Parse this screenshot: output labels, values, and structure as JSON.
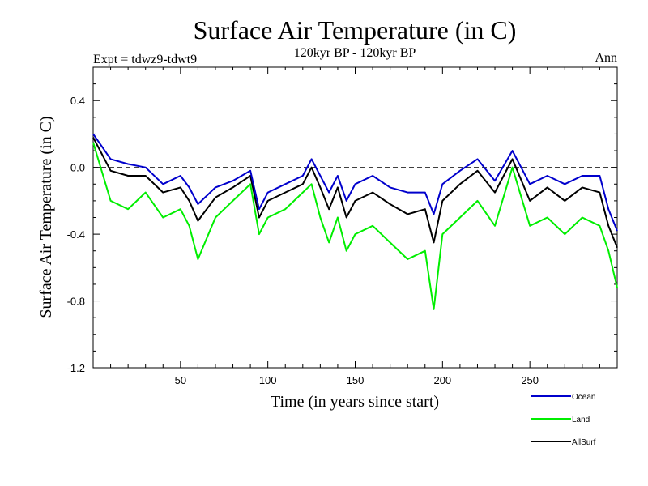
{
  "chart_data": {
    "type": "line",
    "title": "Surface Air Temperature (in C)",
    "subtitle": "120kyr BP - 120kyr BP",
    "left_annotation": "Expt = tdwz9-tdwt9",
    "right_annotation": "Ann",
    "xlabel": "Time (in years since start)",
    "ylabel": "Surface Air Temperature (in C)",
    "xlim": [
      0,
      300
    ],
    "ylim": [
      -1.2,
      0.6
    ],
    "xticks": [
      50,
      100,
      150,
      200,
      250
    ],
    "xtick_labels": [
      "50",
      "100",
      "150",
      "200",
      "250"
    ],
    "yticks": [
      -1.2,
      -0.8,
      -0.4,
      0.0,
      0.4
    ],
    "ytick_labels": [
      "-1.2",
      "-0.8",
      "-0.4",
      "0.0",
      "0.4"
    ],
    "reference_line": 0.0,
    "series": [
      {
        "name": "Ocean",
        "color": "#0000cc",
        "x": [
          0,
          10,
          20,
          30,
          40,
          50,
          55,
          60,
          70,
          80,
          90,
          95,
          100,
          110,
          120,
          125,
          130,
          135,
          140,
          145,
          150,
          160,
          170,
          180,
          190,
          195,
          200,
          210,
          220,
          230,
          240,
          250,
          260,
          270,
          280,
          290,
          295,
          300
        ],
        "values": [
          0.2,
          0.05,
          0.02,
          0.0,
          -0.1,
          -0.05,
          -0.12,
          -0.22,
          -0.12,
          -0.08,
          -0.02,
          -0.25,
          -0.15,
          -0.1,
          -0.05,
          0.05,
          -0.05,
          -0.15,
          -0.05,
          -0.2,
          -0.1,
          -0.05,
          -0.12,
          -0.15,
          -0.15,
          -0.28,
          -0.1,
          -0.02,
          0.05,
          -0.08,
          0.1,
          -0.1,
          -0.05,
          -0.1,
          -0.05,
          -0.05,
          -0.25,
          -0.38
        ]
      },
      {
        "name": "Land",
        "color": "#00ee00",
        "x": [
          0,
          10,
          20,
          30,
          40,
          50,
          55,
          60,
          70,
          80,
          90,
          95,
          100,
          110,
          120,
          125,
          130,
          135,
          140,
          145,
          150,
          160,
          170,
          180,
          190,
          195,
          200,
          210,
          220,
          230,
          240,
          250,
          260,
          270,
          280,
          290,
          295,
          300
        ],
        "values": [
          0.15,
          -0.2,
          -0.25,
          -0.15,
          -0.3,
          -0.25,
          -0.35,
          -0.55,
          -0.3,
          -0.2,
          -0.1,
          -0.4,
          -0.3,
          -0.25,
          -0.15,
          -0.1,
          -0.3,
          -0.45,
          -0.3,
          -0.5,
          -0.4,
          -0.35,
          -0.45,
          -0.55,
          -0.5,
          -0.85,
          -0.4,
          -0.3,
          -0.2,
          -0.35,
          0.0,
          -0.35,
          -0.3,
          -0.4,
          -0.3,
          -0.35,
          -0.5,
          -0.72
        ]
      },
      {
        "name": "AllSurf",
        "color": "#000000",
        "x": [
          0,
          10,
          20,
          30,
          40,
          50,
          55,
          60,
          70,
          80,
          90,
          95,
          100,
          110,
          120,
          125,
          130,
          135,
          140,
          145,
          150,
          160,
          170,
          180,
          190,
          195,
          200,
          210,
          220,
          230,
          240,
          250,
          260,
          270,
          280,
          290,
          295,
          300
        ],
        "values": [
          0.18,
          -0.02,
          -0.05,
          -0.05,
          -0.15,
          -0.12,
          -0.2,
          -0.32,
          -0.18,
          -0.12,
          -0.05,
          -0.3,
          -0.2,
          -0.15,
          -0.1,
          0.0,
          -0.12,
          -0.25,
          -0.12,
          -0.3,
          -0.2,
          -0.15,
          -0.22,
          -0.28,
          -0.25,
          -0.45,
          -0.2,
          -0.1,
          -0.02,
          -0.15,
          0.05,
          -0.2,
          -0.12,
          -0.2,
          -0.12,
          -0.15,
          -0.35,
          -0.48
        ]
      }
    ]
  }
}
